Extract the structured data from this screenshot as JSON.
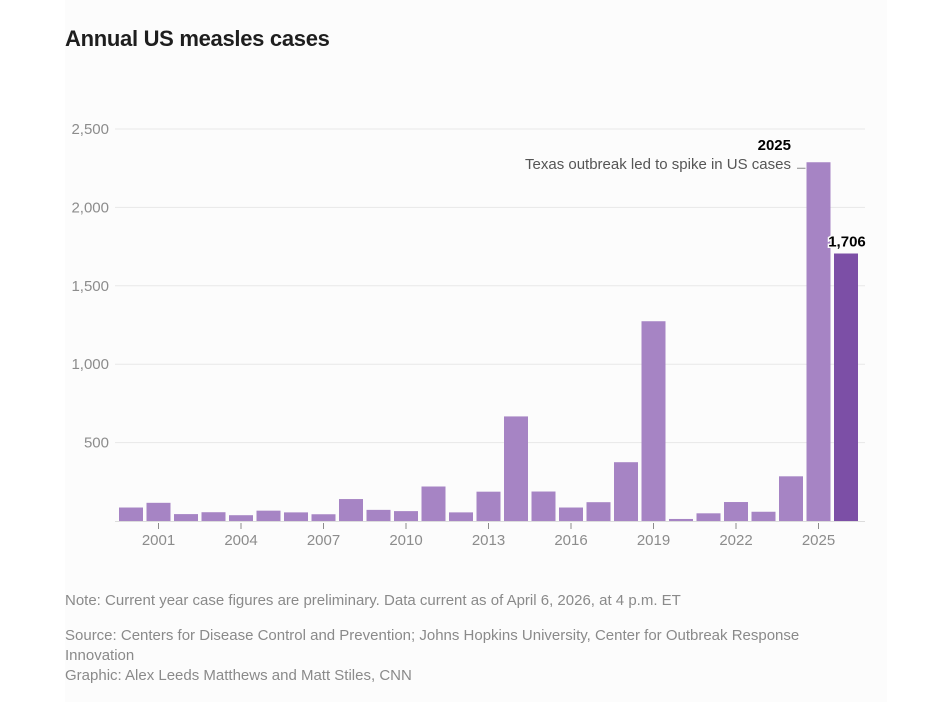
{
  "title": "Annual US measles cases",
  "colors": {
    "bar": "#a684c4",
    "bar_highlight": "#7c4fa6",
    "grid": "#e8e8e8",
    "axis_text": "#8c8c8c"
  },
  "chart_data": {
    "type": "bar",
    "title": "Annual US measles cases",
    "xlabel": "",
    "ylabel": "",
    "ylim": [
      0,
      2500
    ],
    "yticks": [
      500,
      1000,
      1500,
      2000,
      2500
    ],
    "ytick_labels": [
      "500",
      "1,000",
      "1,500",
      "2,000",
      "2,500"
    ],
    "grid": true,
    "categories": [
      "2000",
      "2001",
      "2002",
      "2003",
      "2004",
      "2005",
      "2006",
      "2007",
      "2008",
      "2009",
      "2010",
      "2011",
      "2012",
      "2013",
      "2014",
      "2015",
      "2016",
      "2017",
      "2018",
      "2019",
      "2020",
      "2021",
      "2022",
      "2023",
      "2024",
      "2025",
      "2026"
    ],
    "values": [
      86,
      116,
      44,
      56,
      37,
      66,
      55,
      43,
      140,
      71,
      63,
      220,
      55,
      187,
      667,
      188,
      86,
      120,
      375,
      1274,
      13,
      49,
      121,
      59,
      285,
      2288,
      1706
    ],
    "xtick_labels": [
      "2001",
      "2004",
      "2007",
      "2010",
      "2013",
      "2016",
      "2019",
      "2022",
      "2025"
    ],
    "highlight_category": "2026",
    "annotations": [
      {
        "category": "2025",
        "title": "2025",
        "text": "Texas outbreak led to spike in US cases"
      },
      {
        "category": "2026",
        "label": "1,706"
      }
    ]
  },
  "footer": {
    "note": "Note: Current year case figures are preliminary. Data current as of April 6, 2026, at 4 p.m. ET",
    "source": "Source: Centers for Disease Control and Prevention; Johns Hopkins University, Center for Outbreak Response Innovation",
    "graphic": "Graphic: Alex Leeds Matthews and Matt Stiles, CNN"
  }
}
